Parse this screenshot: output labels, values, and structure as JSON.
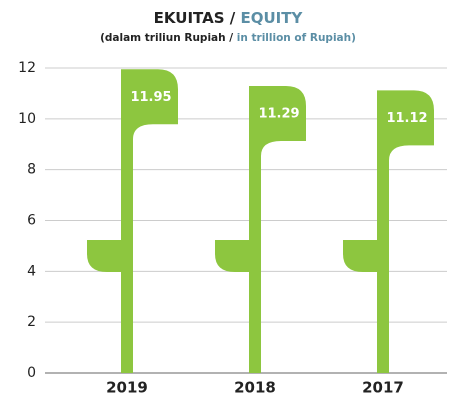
{
  "chart_data": {
    "type": "bar",
    "title": [
      "EKUITAS /",
      "EQUITY"
    ],
    "subtitle": [
      "(dalam triliun Rupiah /",
      "in trillion of Rupiah)"
    ],
    "accent_color": "#5b8ea5",
    "categories": [
      "2019",
      "2018",
      "2017"
    ],
    "values": [
      11.95,
      11.29,
      11.12
    ],
    "color": "#8dc63f",
    "ylim": [
      0,
      12
    ],
    "yticks": [
      0,
      2,
      4,
      6,
      8,
      10,
      12
    ],
    "grid": true
  }
}
